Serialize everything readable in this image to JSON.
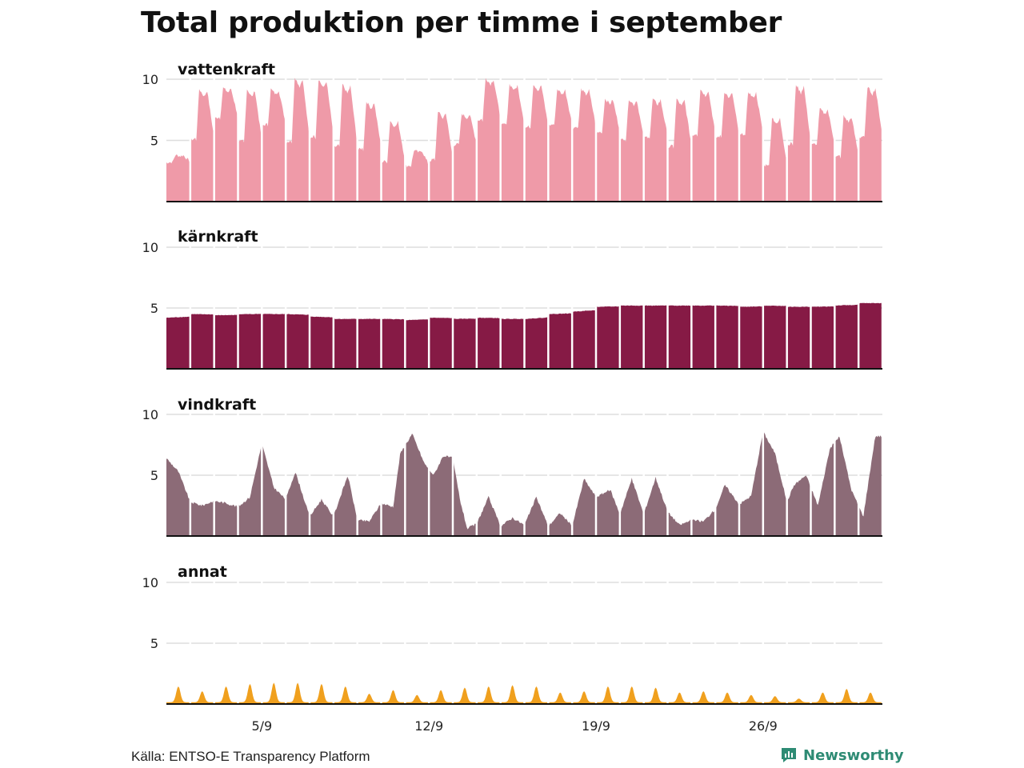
{
  "title": "Total produktion per timme i september",
  "source": "Källa: ENTSO-E Transparency Platform",
  "brand": {
    "name": "Newsworthy",
    "icon": "newsworthy-logo-icon",
    "color": "#2e8b74"
  },
  "chart_data": {
    "type": "area",
    "title": "Total produktion per timme i september",
    "x": {
      "unit": "day-of-month (hourly resolution)",
      "range": [
        1,
        31
      ],
      "ticks": [
        {
          "value": 5,
          "label": "5/9"
        },
        {
          "value": 12,
          "label": "12/9"
        },
        {
          "value": 19,
          "label": "19/9"
        },
        {
          "value": 26,
          "label": "26/9"
        }
      ]
    },
    "y": {
      "range": [
        0,
        10
      ],
      "ticks": [
        5,
        10
      ],
      "grid": true
    },
    "layout": "small-multiples, shared x axis, white separators at midnight",
    "series": [
      {
        "name": "vattenkraft",
        "color": "#ef9aa8",
        "daily": [
          {
            "day": 1,
            "base": 3.2,
            "peak": 3.8
          },
          {
            "day": 2,
            "base": 5.0,
            "peak": 9.2
          },
          {
            "day": 3,
            "base": 6.8,
            "peak": 9.3
          },
          {
            "day": 4,
            "base": 4.8,
            "peak": 9.2
          },
          {
            "day": 5,
            "base": 6.2,
            "peak": 9.2
          },
          {
            "day": 6,
            "base": 4.8,
            "peak": 10.2
          },
          {
            "day": 7,
            "base": 5.2,
            "peak": 10.0
          },
          {
            "day": 8,
            "base": 4.4,
            "peak": 9.6
          },
          {
            "day": 9,
            "base": 4.2,
            "peak": 8.2
          },
          {
            "day": 10,
            "base": 3.2,
            "peak": 6.6
          },
          {
            "day": 11,
            "base": 2.9,
            "peak": 4.2
          },
          {
            "day": 12,
            "base": 3.3,
            "peak": 7.4
          },
          {
            "day": 13,
            "base": 4.6,
            "peak": 7.2
          },
          {
            "day": 14,
            "base": 6.6,
            "peak": 10.1
          },
          {
            "day": 15,
            "base": 6.2,
            "peak": 9.6
          },
          {
            "day": 16,
            "base": 6.0,
            "peak": 9.6
          },
          {
            "day": 17,
            "base": 6.2,
            "peak": 9.2
          },
          {
            "day": 18,
            "base": 6.0,
            "peak": 9.2
          },
          {
            "day": 19,
            "base": 5.6,
            "peak": 8.4
          },
          {
            "day": 20,
            "base": 5.0,
            "peak": 8.4
          },
          {
            "day": 21,
            "base": 5.2,
            "peak": 8.4
          },
          {
            "day": 22,
            "base": 4.4,
            "peak": 8.4
          },
          {
            "day": 23,
            "base": 5.4,
            "peak": 9.2
          },
          {
            "day": 24,
            "base": 5.2,
            "peak": 9.0
          },
          {
            "day": 25,
            "base": 5.4,
            "peak": 9.0
          },
          {
            "day": 26,
            "base": 2.9,
            "peak": 6.9
          },
          {
            "day": 27,
            "base": 4.6,
            "peak": 9.6
          },
          {
            "day": 28,
            "base": 4.6,
            "peak": 7.6
          },
          {
            "day": 29,
            "base": 3.6,
            "peak": 7.0
          },
          {
            "day": 30,
            "base": 5.2,
            "peak": 9.4
          }
        ]
      },
      {
        "name": "kärnkraft",
        "color": "#861a45",
        "daily": [
          {
            "day": 1,
            "value": 4.2
          },
          {
            "day": 2,
            "value": 4.5
          },
          {
            "day": 3,
            "value": 4.4
          },
          {
            "day": 4,
            "value": 4.5
          },
          {
            "day": 5,
            "value": 4.5
          },
          {
            "day": 6,
            "value": 4.5
          },
          {
            "day": 7,
            "value": 4.3
          },
          {
            "day": 8,
            "value": 4.1
          },
          {
            "day": 9,
            "value": 4.1
          },
          {
            "day": 10,
            "value": 4.1
          },
          {
            "day": 11,
            "value": 4.0
          },
          {
            "day": 12,
            "value": 4.2
          },
          {
            "day": 13,
            "value": 4.1
          },
          {
            "day": 14,
            "value": 4.2
          },
          {
            "day": 15,
            "value": 4.1
          },
          {
            "day": 16,
            "value": 4.1
          },
          {
            "day": 17,
            "value": 4.5
          },
          {
            "day": 18,
            "value": 4.7
          },
          {
            "day": 19,
            "value": 5.1
          },
          {
            "day": 20,
            "value": 5.2
          },
          {
            "day": 21,
            "value": 5.2
          },
          {
            "day": 22,
            "value": 5.2
          },
          {
            "day": 23,
            "value": 5.2
          },
          {
            "day": 24,
            "value": 5.2
          },
          {
            "day": 25,
            "value": 5.1
          },
          {
            "day": 26,
            "value": 5.2
          },
          {
            "day": 27,
            "value": 5.1
          },
          {
            "day": 28,
            "value": 5.1
          },
          {
            "day": 29,
            "value": 5.2
          },
          {
            "day": 30,
            "value": 5.4
          }
        ]
      },
      {
        "name": "vindkraft",
        "color": "#8c6b77",
        "points": [
          [
            1,
            6.4
          ],
          [
            1.5,
            5.3
          ],
          [
            2,
            2.8
          ],
          [
            2.5,
            2.5
          ],
          [
            3,
            2.9
          ],
          [
            3.5,
            2.7
          ],
          [
            4,
            2.4
          ],
          [
            4.5,
            3.2
          ],
          [
            5,
            7.6
          ],
          [
            5.5,
            4.0
          ],
          [
            6,
            3.0
          ],
          [
            6.4,
            5.3
          ],
          [
            7,
            1.6
          ],
          [
            7.5,
            3.0
          ],
          [
            8,
            1.6
          ],
          [
            8.6,
            5.0
          ],
          [
            9,
            1.3
          ],
          [
            9.5,
            1.2
          ],
          [
            10,
            2.7
          ],
          [
            10.5,
            2.4
          ],
          [
            10.8,
            6.8
          ],
          [
            11.3,
            8.4
          ],
          [
            11.8,
            6.0
          ],
          [
            12.2,
            5.0
          ],
          [
            12.6,
            6.6
          ],
          [
            13,
            6.4
          ],
          [
            13.3,
            3.0
          ],
          [
            13.6,
            0.6
          ],
          [
            14,
            1.0
          ],
          [
            14.5,
            3.2
          ],
          [
            15,
            0.8
          ],
          [
            15.5,
            1.5
          ],
          [
            16,
            0.9
          ],
          [
            16.5,
            3.2
          ],
          [
            17,
            0.8
          ],
          [
            17.5,
            1.9
          ],
          [
            18,
            0.8
          ],
          [
            18.5,
            4.7
          ],
          [
            19,
            3.2
          ],
          [
            19.6,
            3.8
          ],
          [
            20,
            1.8
          ],
          [
            20.5,
            4.7
          ],
          [
            21,
            1.8
          ],
          [
            21.5,
            4.8
          ],
          [
            22,
            2.0
          ],
          [
            22.5,
            0.9
          ],
          [
            23,
            1.3
          ],
          [
            23.5,
            1.2
          ],
          [
            24,
            2.2
          ],
          [
            24.4,
            4.2
          ],
          [
            25,
            2.6
          ],
          [
            25.5,
            3.3
          ],
          [
            26,
            8.6
          ],
          [
            26.5,
            6.8
          ],
          [
            27,
            2.8
          ],
          [
            27.3,
            4.2
          ],
          [
            27.8,
            5.0
          ],
          [
            28.3,
            2.5
          ],
          [
            28.8,
            7.2
          ],
          [
            29.2,
            8.2
          ],
          [
            29.7,
            3.8
          ],
          [
            30.2,
            1.6
          ],
          [
            30.7,
            8.2
          ]
        ]
      },
      {
        "name": "annat",
        "color": "#f0a01e",
        "daily_peak": [
          1.3,
          0.9,
          1.3,
          1.5,
          1.6,
          1.6,
          1.5,
          1.3,
          0.7,
          1.0,
          0.6,
          1.0,
          1.2,
          1.3,
          1.4,
          1.3,
          0.8,
          0.9,
          1.3,
          1.3,
          1.2,
          0.8,
          0.9,
          0.8,
          0.6,
          0.5,
          0.3,
          0.8,
          1.1,
          0.8
        ]
      }
    ]
  }
}
